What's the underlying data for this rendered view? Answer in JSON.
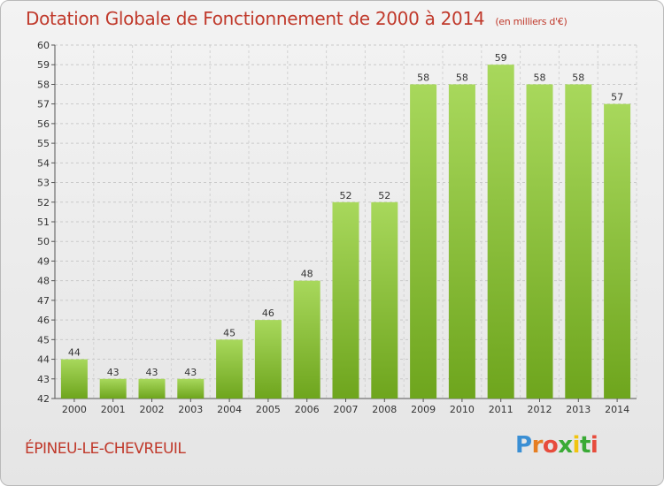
{
  "header": {
    "title": "Dotation Globale de Fonctionnement de 2000 à 2014",
    "unit": "(en milliers d'€)"
  },
  "footer": {
    "commune": "ÉPINEU-LE-CHEVREUIL",
    "logo_text": "Proxiti"
  },
  "chart_data": {
    "type": "bar",
    "title": "Dotation Globale de Fonctionnement de 2000 à 2014",
    "subtitle": "(en milliers d'€)",
    "xlabel": "",
    "ylabel": "",
    "categories": [
      "2000",
      "2001",
      "2002",
      "2003",
      "2004",
      "2005",
      "2006",
      "2007",
      "2008",
      "2009",
      "2010",
      "2011",
      "2012",
      "2013",
      "2014"
    ],
    "values": [
      44,
      43,
      43,
      43,
      45,
      46,
      48,
      52,
      52,
      58,
      58,
      59,
      58,
      58,
      57
    ],
    "ylim": [
      42,
      60
    ],
    "yticks": [
      42,
      43,
      44,
      45,
      46,
      47,
      48,
      49,
      50,
      51,
      52,
      53,
      54,
      55,
      56,
      57,
      58,
      59,
      60
    ],
    "grid": true,
    "legend": "none",
    "colors": {
      "bar_light": "#a6d55a",
      "bar_dark": "#6fa81f",
      "grid": "#c8c8c8",
      "title": "#c0392b"
    }
  }
}
